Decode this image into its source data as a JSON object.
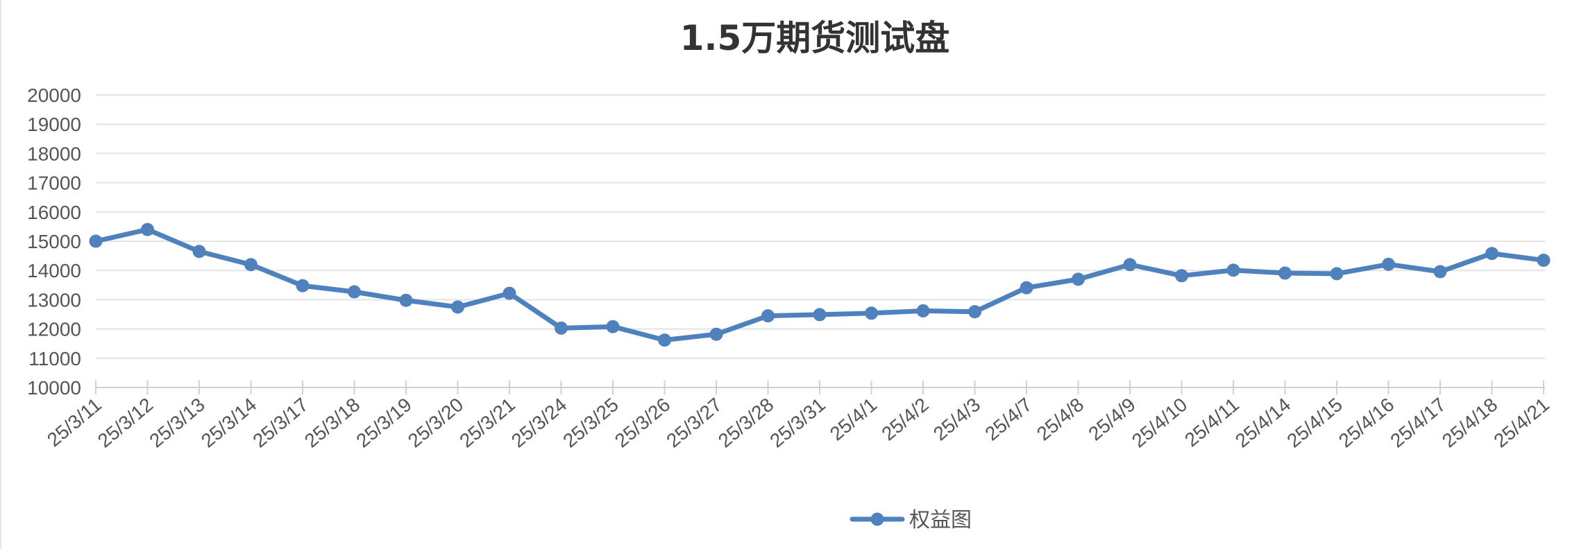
{
  "chart_data": {
    "type": "line",
    "title": "1.5万期货测试盘",
    "xlabel": "",
    "ylabel": "",
    "categories": [
      "25/3/11",
      "25/3/12",
      "25/3/13",
      "25/3/14",
      "25/3/17",
      "25/3/18",
      "25/3/19",
      "25/3/20",
      "25/3/21",
      "25/3/24",
      "25/3/25",
      "25/3/26",
      "25/3/27",
      "25/3/28",
      "25/3/31",
      "25/4/1",
      "25/4/2",
      "25/4/3",
      "25/4/7",
      "25/4/8",
      "25/4/9",
      "25/4/10",
      "25/4/11",
      "25/4/14",
      "25/4/15",
      "25/4/16",
      "25/4/17",
      "25/4/18",
      "25/4/21"
    ],
    "series": [
      {
        "name": "权益图",
        "color": "#4f81bd",
        "values": [
          15000,
          15400,
          14650,
          14200,
          13480,
          13270,
          12980,
          12750,
          13220,
          12030,
          12080,
          11620,
          11820,
          12450,
          12490,
          12540,
          12620,
          12590,
          13410,
          13700,
          14200,
          13820,
          14010,
          13910,
          13890,
          14210,
          13960,
          14580,
          14350
        ]
      }
    ],
    "ylim": [
      10000,
      20000
    ],
    "yticks": [
      10000,
      11000,
      12000,
      13000,
      14000,
      15000,
      16000,
      17000,
      18000,
      19000,
      20000
    ],
    "grid": true,
    "legend_position": "bottom"
  }
}
